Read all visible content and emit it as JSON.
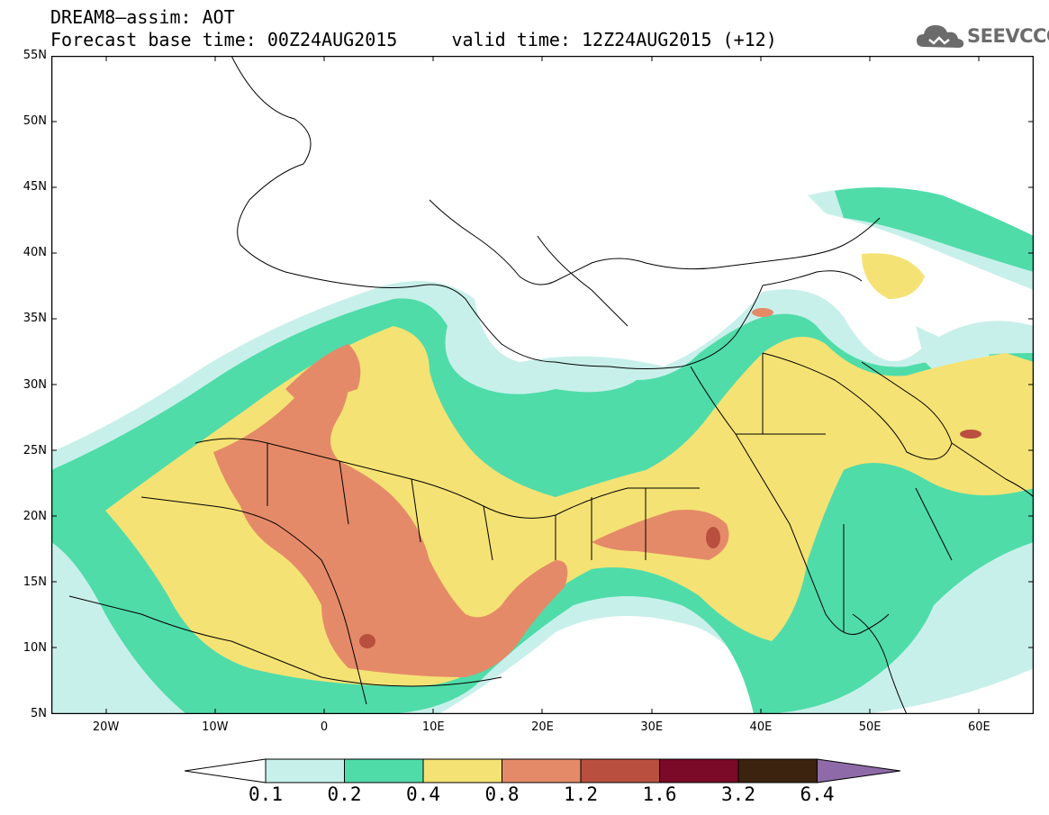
{
  "title": {
    "line1": "DREAM8–assim: AOT",
    "line2": "Forecast base time: 00Z24AUG2015     valid time: 12Z24AUG2015 (+12)"
  },
  "logo": {
    "text": "SEEVCCC",
    "icon": "cloud-icon"
  },
  "map": {
    "lon_range": [
      -25,
      65
    ],
    "lat_range": [
      5,
      55
    ],
    "lat_ticks": [
      "55N",
      "50N",
      "45N",
      "40N",
      "35N",
      "30N",
      "25N",
      "20N",
      "15N",
      "10N",
      "5N"
    ],
    "lon_ticks": [
      "20W",
      "10W",
      "0",
      "10E",
      "20E",
      "30E",
      "40E",
      "50E",
      "60E"
    ]
  },
  "colorbar": {
    "colors": [
      "#ffffff",
      "#c8f0ea",
      "#4fdca9",
      "#f5e274",
      "#e58a68",
      "#b9503f",
      "#7a0a27",
      "#3b2310",
      "#8f6aa8"
    ],
    "labels": [
      "0.1",
      "0.2",
      "0.4",
      "0.8",
      "1.2",
      "1.6",
      "3.2",
      "6.4"
    ]
  }
}
